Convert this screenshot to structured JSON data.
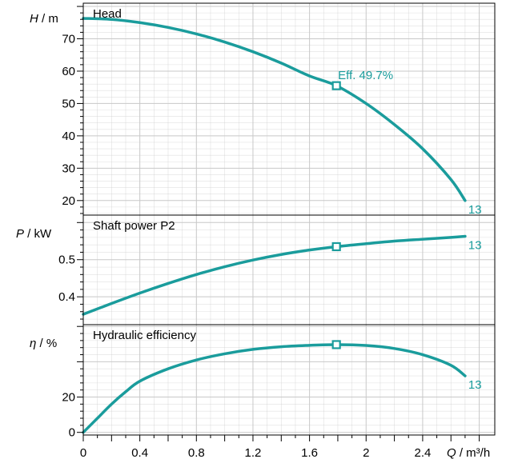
{
  "theme": {
    "curve_color": "#1a9c9c",
    "grid_color": "#c8c8c8",
    "frame_color": "#000000"
  },
  "x_axis": {
    "var": "Q",
    "unit": " / m³/h",
    "range": [
      0,
      2.8
    ],
    "ticks": [
      {
        "v": 0,
        "label": "0"
      },
      {
        "v": 0.4,
        "label": "0.4"
      },
      {
        "v": 0.8,
        "label": "0.8"
      },
      {
        "v": 1.2,
        "label": "1.2"
      },
      {
        "v": 1.6,
        "label": "1.6"
      },
      {
        "v": 2.0,
        "label": "2"
      },
      {
        "v": 2.4,
        "label": "2.4"
      }
    ]
  },
  "chart_data": [
    {
      "type": "line",
      "title": "Head",
      "y_var": "H",
      "y_unit": " / m",
      "ylim": [
        15.5,
        81
      ],
      "yticks": [
        20,
        30,
        40,
        50,
        60,
        70
      ],
      "series": [
        {
          "name": "13",
          "x": [
            0,
            0.2,
            0.4,
            0.6,
            0.8,
            1.0,
            1.2,
            1.4,
            1.6,
            1.79,
            2.0,
            2.2,
            2.4,
            2.6,
            2.7
          ],
          "values": [
            76.3,
            76.0,
            75.0,
            73.5,
            71.5,
            69.0,
            66.0,
            62.5,
            58.5,
            55.5,
            50.0,
            43.5,
            36.0,
            26.5,
            20.0
          ]
        }
      ],
      "operating_point": {
        "x": 1.79,
        "y": 55.5,
        "label": "Eff.  49.7%"
      },
      "end_label": "13"
    },
    {
      "type": "line",
      "title": "Shaft power P2",
      "y_var": "P",
      "y_unit": " / kW",
      "ylim": [
        0.325,
        0.62
      ],
      "yticks": [
        0.4,
        0.5
      ],
      "series": [
        {
          "name": "13",
          "x": [
            0,
            0.2,
            0.4,
            0.6,
            0.8,
            1.0,
            1.2,
            1.4,
            1.6,
            1.79,
            2.0,
            2.2,
            2.4,
            2.6,
            2.7
          ],
          "values": [
            0.353,
            0.382,
            0.41,
            0.436,
            0.46,
            0.481,
            0.499,
            0.514,
            0.526,
            0.535,
            0.543,
            0.55,
            0.555,
            0.56,
            0.563
          ]
        }
      ],
      "operating_point": {
        "x": 1.79,
        "y": 0.535
      },
      "end_label": "13"
    },
    {
      "type": "line",
      "title": "Hydraulic efficiency",
      "y_var": "η",
      "y_unit": " / %",
      "ylim": [
        -1.5,
        61
      ],
      "yticks": [
        0,
        20
      ],
      "series": [
        {
          "name": "13",
          "x": [
            0,
            0.1,
            0.2,
            0.3,
            0.4,
            0.6,
            0.8,
            1.0,
            1.2,
            1.4,
            1.6,
            1.79,
            2.0,
            2.2,
            2.4,
            2.6,
            2.7
          ],
          "values": [
            0,
            8,
            16,
            23,
            29,
            36,
            41,
            44.5,
            47,
            48.5,
            49.3,
            49.7,
            49.2,
            47.5,
            44,
            38,
            32
          ]
        }
      ],
      "operating_point": {
        "x": 1.79,
        "y": 49.7
      },
      "end_label": "13"
    }
  ]
}
